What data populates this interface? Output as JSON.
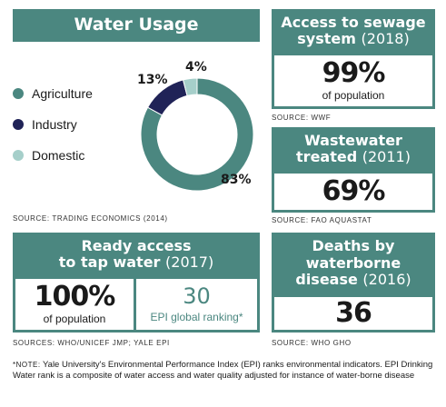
{
  "water_usage": {
    "title": "Water Usage",
    "source": "SOURCE: TRADING ECONOMICS (2014)"
  },
  "sewage": {
    "title_line1": "Access to sewage",
    "title_line2": "system",
    "year": "(2018)",
    "value": "99%",
    "caption": "of population",
    "source": "SOURCE: WWF"
  },
  "wastewater": {
    "title_line1": "Wastewater",
    "title_line2": "treated",
    "year": "(2011)",
    "value": "69%",
    "source": "SOURCE: FAO AQUASTAT"
  },
  "tap_water": {
    "title_line1": "Ready access",
    "title_line2": "to tap water",
    "year": "(2017)",
    "value": "100%",
    "caption": "of population",
    "rank_value": "30",
    "rank_caption": "EPI global ranking*",
    "source": "SOURCES: WHO/UNICEF JMP; YALE EPI"
  },
  "deaths": {
    "title_line1": "Deaths by",
    "title_line2": "waterborne",
    "title_line3": "disease",
    "year": "(2016)",
    "value": "36",
    "source": "SOURCE: WHO GHO"
  },
  "note": {
    "label": "*NOTE:",
    "text": "Yale University's Environmental Performance Index (EPI) ranks environmental indicators. EPI Drinking Water rank is a composite of water access and water quality adjusted for instance of water-borne disease"
  },
  "colors": {
    "teal": "#4b8780",
    "navy": "#202357",
    "light": "#a6cfca"
  },
  "chart_data": {
    "type": "pie",
    "title": "Water Usage",
    "categories": [
      "Agriculture",
      "Industry",
      "Domestic"
    ],
    "values": [
      83,
      13,
      4
    ],
    "labels": [
      "83%",
      "13%",
      "4%"
    ],
    "colors": [
      "#4b8780",
      "#202357",
      "#a6cfca"
    ],
    "donut": true,
    "legend": "left"
  }
}
